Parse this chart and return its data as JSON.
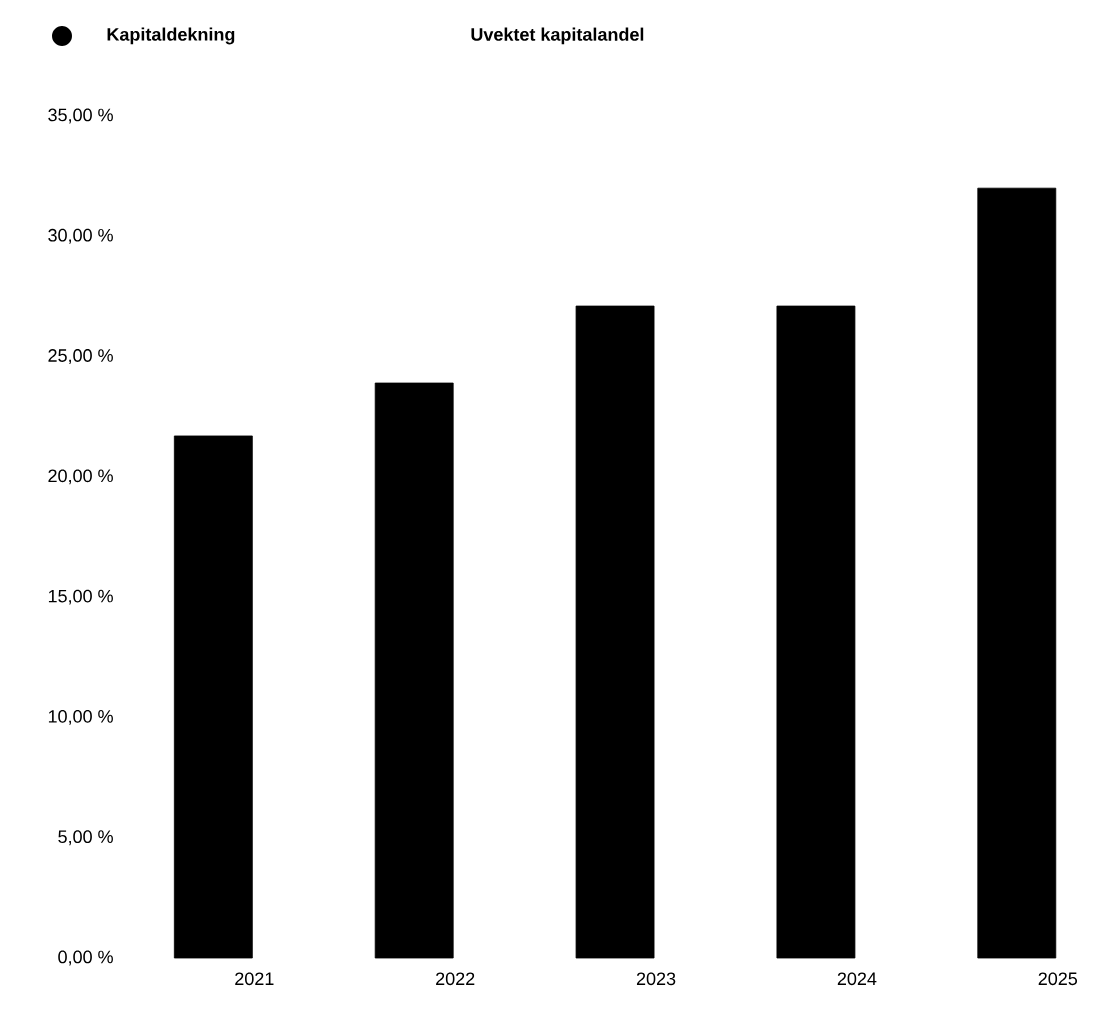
{
  "chart_data": {
    "type": "bar",
    "categories": [
      "2021",
      "2022",
      "2023",
      "2024",
      "2025"
    ],
    "series": [
      {
        "name": "Kapitaldekning",
        "color": "#000000",
        "values": [
          21.7,
          23.9,
          27.1,
          27.1,
          32.0
        ]
      },
      {
        "name": "Uvektet kapitalandel",
        "values": [
          null,
          null,
          null,
          null,
          null
        ]
      }
    ],
    "ylim": [
      0,
      35
    ],
    "yticks": [
      {
        "value": 0,
        "label": "0,00 %"
      },
      {
        "value": 5,
        "label": "5,00 %"
      },
      {
        "value": 10,
        "label": "10,00 %"
      },
      {
        "value": 15,
        "label": "15,00 %"
      },
      {
        "value": 20,
        "label": "20,00 %"
      },
      {
        "value": 25,
        "label": "25,00 %"
      },
      {
        "value": 30,
        "label": "30,00 %"
      },
      {
        "value": 35,
        "label": "35,00 %"
      }
    ],
    "legend": "top left"
  }
}
